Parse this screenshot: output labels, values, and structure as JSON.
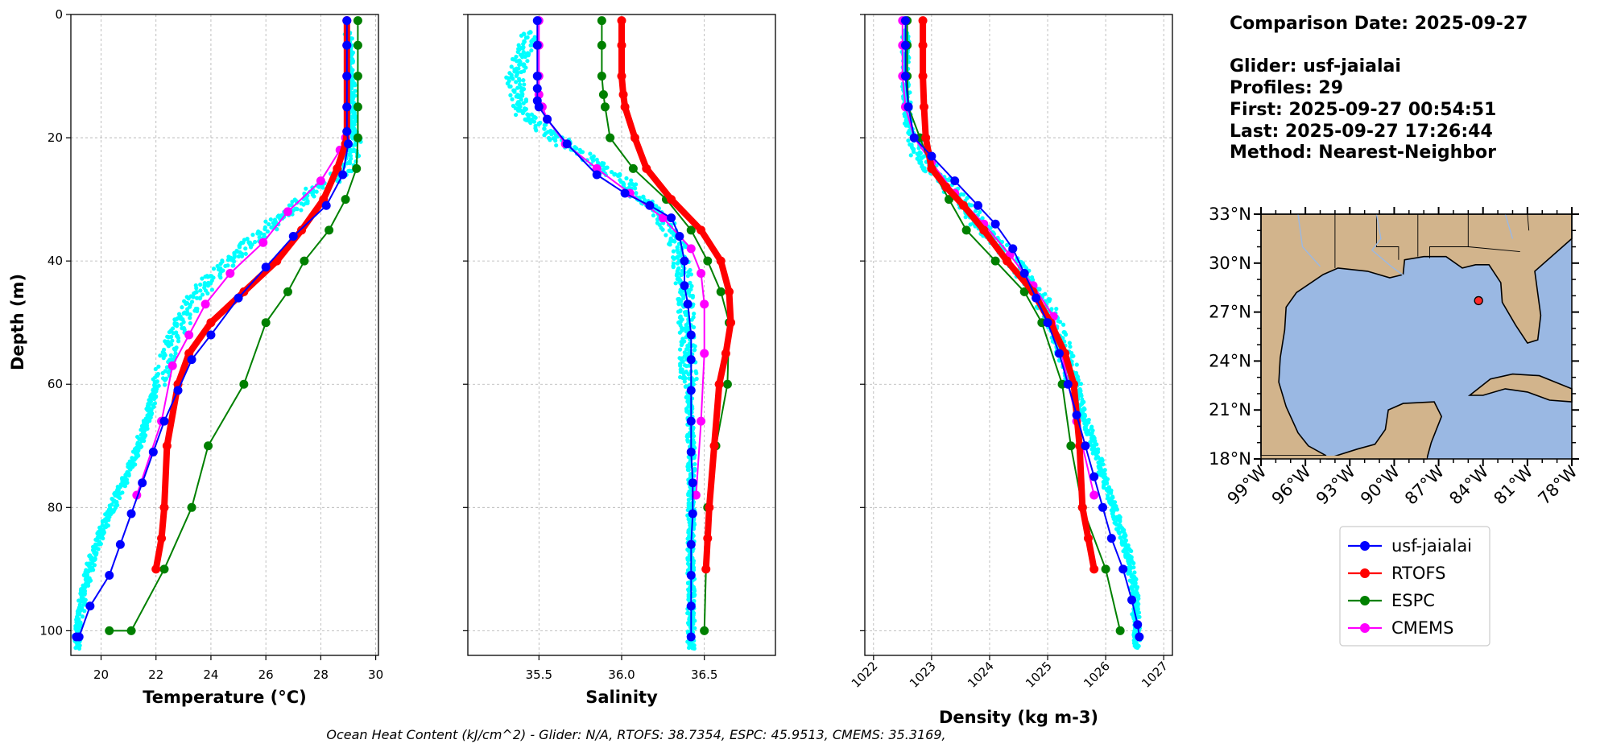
{
  "info": {
    "comparison_date": "Comparison Date: 2025-09-27",
    "glider": "Glider: usf-jaialai",
    "profiles": "Profiles: 29",
    "first": "First: 2025-09-27 00:54:51",
    "last": "Last: 2025-09-27 17:26:44",
    "method": "Method: Nearest-Neighbor"
  },
  "footer": "Ocean Heat Content (kJ/cm^2) - Glider: N/A,  RTOFS: 38.7354,  ESPC: 45.9513,  CMEMS: 35.3169,",
  "colors": {
    "glider": "#0000ff",
    "rtofs": "#ff0000",
    "espc": "#008000",
    "cmems": "#ff00ff",
    "raw": "#00ffff",
    "ocean": "#9ab8e3",
    "land": "#d2b48c"
  },
  "chart_data": [
    {
      "type": "line",
      "title": "",
      "xlabel": "Temperature (°C)",
      "ylabel": "Depth (m)",
      "xlim": [
        18.9,
        30.1
      ],
      "ylim": [
        104,
        0
      ],
      "y_inverted": true,
      "grid": true,
      "xticks": [
        "20",
        "22",
        "24",
        "26",
        "28",
        "30"
      ],
      "xtick_values": [
        20,
        22,
        24,
        26,
        28,
        30
      ],
      "yticks": [
        "0",
        "20",
        "40",
        "60",
        "80",
        "100"
      ],
      "ytick_values": [
        0,
        20,
        40,
        60,
        80,
        100
      ],
      "raw_band": [
        [
          29.0,
          3
        ],
        [
          29.1,
          10
        ],
        [
          29.2,
          20
        ],
        [
          29.1,
          24
        ],
        [
          28.7,
          26
        ],
        [
          27.9,
          28
        ],
        [
          26.8,
          32
        ],
        [
          25.4,
          37
        ],
        [
          24.2,
          42
        ],
        [
          23.4,
          46
        ],
        [
          22.7,
          52
        ],
        [
          22.3,
          57
        ],
        [
          21.9,
          62
        ],
        [
          21.6,
          67
        ],
        [
          21.2,
          72
        ],
        [
          20.7,
          77
        ],
        [
          20.2,
          82
        ],
        [
          19.7,
          88
        ],
        [
          19.4,
          93
        ],
        [
          19.2,
          98
        ],
        [
          19.1,
          103
        ]
      ],
      "series": [
        {
          "name": "usf-jaialai",
          "key": "glider",
          "x": [
            28.95,
            28.95,
            28.95,
            28.95,
            28.95,
            29.0,
            28.8,
            28.2,
            27.0,
            26.0,
            25.0,
            24.0,
            23.3,
            22.8,
            22.3,
            21.9,
            21.5,
            21.1,
            20.7,
            20.3,
            19.6,
            19.2,
            19.1
          ],
          "y": [
            1,
            5,
            10,
            15,
            19,
            21,
            26,
            31,
            36,
            41,
            46,
            52,
            56,
            61,
            66,
            71,
            76,
            81,
            86,
            91,
            96,
            101,
            101
          ]
        },
        {
          "name": "RTOFS",
          "key": "rtofs",
          "x": [
            28.95,
            28.95,
            28.95,
            28.95,
            28.95,
            28.9,
            28.6,
            28.1,
            27.3,
            26.4,
            25.2,
            24.0,
            23.2,
            22.8,
            22.4,
            22.3,
            22.2,
            22.0
          ],
          "y": [
            1,
            5,
            10,
            15,
            19,
            21,
            25,
            30,
            35,
            40,
            45,
            50,
            55,
            60,
            70,
            80,
            85,
            90
          ]
        },
        {
          "name": "ESPC",
          "key": "espc",
          "x": [
            29.35,
            29.35,
            29.35,
            29.35,
            29.35,
            29.3,
            28.9,
            28.3,
            27.4,
            26.8,
            26.0,
            25.2,
            23.9,
            23.3,
            22.3,
            21.1,
            20.3
          ],
          "y": [
            1,
            5,
            10,
            15,
            20,
            25,
            30,
            35,
            40,
            45,
            50,
            60,
            70,
            80,
            90,
            100,
            100
          ]
        },
        {
          "name": "CMEMS",
          "key": "cmems",
          "x": [
            28.95,
            28.95,
            28.95,
            28.95,
            28.9,
            28.7,
            28.0,
            26.8,
            25.9,
            24.7,
            23.8,
            23.2,
            22.6,
            22.2,
            21.3
          ],
          "y": [
            1,
            5,
            10,
            15,
            20,
            22,
            27,
            32,
            37,
            42,
            47,
            52,
            57,
            66,
            78
          ]
        }
      ]
    },
    {
      "type": "line",
      "title": "",
      "xlabel": "Salinity",
      "ylabel": "",
      "xlim": [
        35.07,
        36.93
      ],
      "ylim": [
        104,
        0
      ],
      "y_inverted": true,
      "grid": true,
      "xticks": [
        "35.5",
        "36.0",
        "36.5"
      ],
      "xtick_values": [
        35.5,
        36.0,
        36.5
      ],
      "raw_band": [
        [
          35.45,
          3
        ],
        [
          35.35,
          10
        ],
        [
          35.4,
          16
        ],
        [
          35.6,
          20
        ],
        [
          35.85,
          24
        ],
        [
          36.05,
          28
        ],
        [
          36.25,
          33
        ],
        [
          36.35,
          38
        ],
        [
          36.38,
          45
        ],
        [
          36.4,
          55
        ],
        [
          36.42,
          70
        ],
        [
          36.42,
          85
        ],
        [
          36.42,
          103
        ]
      ],
      "series": [
        {
          "name": "usf-jaialai",
          "key": "glider",
          "x": [
            35.49,
            35.49,
            35.49,
            35.49,
            35.49,
            35.5,
            35.55,
            35.67,
            35.85,
            36.02,
            36.17,
            36.3,
            36.35,
            36.38,
            36.38,
            36.4,
            36.42,
            36.42,
            36.42,
            36.42,
            36.42,
            36.43,
            36.43,
            36.42,
            36.42,
            36.42,
            36.42
          ],
          "y": [
            1,
            5,
            10,
            12,
            14,
            15,
            17,
            21,
            26,
            29,
            31,
            33,
            36,
            40,
            44,
            47,
            52,
            56,
            61,
            66,
            71,
            76,
            81,
            86,
            91,
            96,
            101
          ]
        },
        {
          "name": "RTOFS",
          "key": "rtofs",
          "x": [
            36.0,
            36.0,
            36.0,
            36.01,
            36.02,
            36.08,
            36.15,
            36.3,
            36.48,
            36.6,
            36.65,
            36.66,
            36.63,
            36.59,
            36.56,
            36.53,
            36.52,
            36.51
          ],
          "y": [
            1,
            5,
            10,
            13,
            15,
            20,
            25,
            30,
            35,
            40,
            45,
            50,
            55,
            60,
            70,
            80,
            85,
            90
          ]
        },
        {
          "name": "ESPC",
          "key": "espc",
          "x": [
            35.88,
            35.88,
            35.88,
            35.89,
            35.9,
            35.93,
            36.07,
            36.27,
            36.42,
            36.52,
            36.6,
            36.65,
            36.64,
            36.57,
            36.52,
            36.5
          ],
          "y": [
            1,
            5,
            10,
            13,
            15,
            20,
            25,
            30,
            35,
            40,
            45,
            50,
            60,
            70,
            80,
            100
          ]
        },
        {
          "name": "CMEMS",
          "key": "cmems",
          "x": [
            35.5,
            35.5,
            35.5,
            35.5,
            35.52,
            35.55,
            35.66,
            35.85,
            36.05,
            36.25,
            36.42,
            36.48,
            36.5,
            36.5,
            36.48,
            36.45
          ],
          "y": [
            1,
            5,
            10,
            13,
            15,
            17,
            21,
            25,
            29,
            33,
            38,
            42,
            47,
            55,
            66,
            78
          ]
        }
      ]
    },
    {
      "type": "line",
      "title": "",
      "xlabel": "Density (kg m-3)",
      "ylabel": "",
      "xlim": [
        1021.85,
        1027.15
      ],
      "ylim": [
        104,
        0
      ],
      "y_inverted": true,
      "grid": true,
      "xticks": [
        "1022",
        "1023",
        "1024",
        "1025",
        "1026",
        "1027"
      ],
      "xtick_values": [
        1022,
        1023,
        1024,
        1025,
        1026,
        1027
      ],
      "raw_band": [
        [
          1022.55,
          3
        ],
        [
          1022.55,
          10
        ],
        [
          1022.6,
          18
        ],
        [
          1022.8,
          23
        ],
        [
          1023.1,
          26
        ],
        [
          1023.5,
          30
        ],
        [
          1023.9,
          35
        ],
        [
          1024.4,
          40
        ],
        [
          1024.9,
          46
        ],
        [
          1025.2,
          52
        ],
        [
          1025.4,
          58
        ],
        [
          1025.6,
          64
        ],
        [
          1025.8,
          70
        ],
        [
          1026.0,
          76
        ],
        [
          1026.2,
          82
        ],
        [
          1026.4,
          88
        ],
        [
          1026.5,
          94
        ],
        [
          1026.55,
          103
        ]
      ],
      "series": [
        {
          "name": "usf-jaialai",
          "key": "glider",
          "x": [
            1022.55,
            1022.55,
            1022.55,
            1022.6,
            1022.7,
            1023.0,
            1023.4,
            1023.8,
            1024.1,
            1024.4,
            1024.6,
            1024.8,
            1025.0,
            1025.2,
            1025.35,
            1025.5,
            1025.65,
            1025.8,
            1025.95,
            1026.1,
            1026.3,
            1026.45,
            1026.55,
            1026.58
          ],
          "y": [
            1,
            5,
            10,
            15,
            20,
            23,
            27,
            31,
            34,
            38,
            42,
            46,
            50,
            55,
            60,
            65,
            70,
            75,
            80,
            85,
            90,
            95,
            99,
            101
          ]
        },
        {
          "name": "RTOFS",
          "key": "rtofs",
          "x": [
            1022.85,
            1022.85,
            1022.85,
            1022.87,
            1022.9,
            1023.0,
            1023.25,
            1023.55,
            1023.9,
            1024.3,
            1024.75,
            1025.05,
            1025.3,
            1025.45,
            1025.55,
            1025.6,
            1025.7,
            1025.8
          ],
          "y": [
            1,
            5,
            10,
            15,
            20,
            25,
            28,
            31,
            35,
            40,
            45,
            50,
            55,
            60,
            70,
            80,
            85,
            90
          ]
        },
        {
          "name": "ESPC",
          "key": "espc",
          "x": [
            1022.58,
            1022.58,
            1022.58,
            1022.6,
            1022.8,
            1023.0,
            1023.3,
            1023.6,
            1024.1,
            1024.6,
            1024.9,
            1025.25,
            1025.4,
            1025.6,
            1026.0,
            1026.25
          ],
          "y": [
            1,
            5,
            10,
            15,
            20,
            25,
            30,
            35,
            40,
            45,
            50,
            60,
            70,
            80,
            90,
            100
          ]
        },
        {
          "name": "CMEMS",
          "key": "cmems",
          "x": [
            1022.5,
            1022.5,
            1022.5,
            1022.55,
            1022.7,
            1023.0,
            1023.4,
            1023.9,
            1024.35,
            1024.75,
            1025.1,
            1025.5,
            1025.8
          ],
          "y": [
            1,
            5,
            10,
            15,
            20,
            24,
            29,
            34,
            39,
            44,
            49,
            66,
            78
          ]
        }
      ]
    }
  ],
  "map": {
    "lat_ticks": [
      "33°N",
      "30°N",
      "27°N",
      "24°N",
      "21°N",
      "18°N"
    ],
    "lat_values": [
      33,
      30,
      27,
      24,
      21,
      18
    ],
    "lon_ticks": [
      "99°W",
      "96°W",
      "93°W",
      "90°W",
      "87°W",
      "84°W",
      "81°W",
      "78°W"
    ],
    "lon_values": [
      -99,
      -96,
      -93,
      -90,
      -87,
      -84,
      -81,
      -78
    ],
    "lon_range": [
      -99,
      -78
    ],
    "lat_range": [
      18,
      33
    ],
    "glider_position": {
      "lon": -84.3,
      "lat": 27.7
    }
  },
  "legend": {
    "location": "below-map",
    "items": [
      {
        "label": "usf-jaialai",
        "key": "glider"
      },
      {
        "label": "RTOFS",
        "key": "rtofs"
      },
      {
        "label": "ESPC",
        "key": "espc"
      },
      {
        "label": "CMEMS",
        "key": "cmems"
      }
    ]
  }
}
